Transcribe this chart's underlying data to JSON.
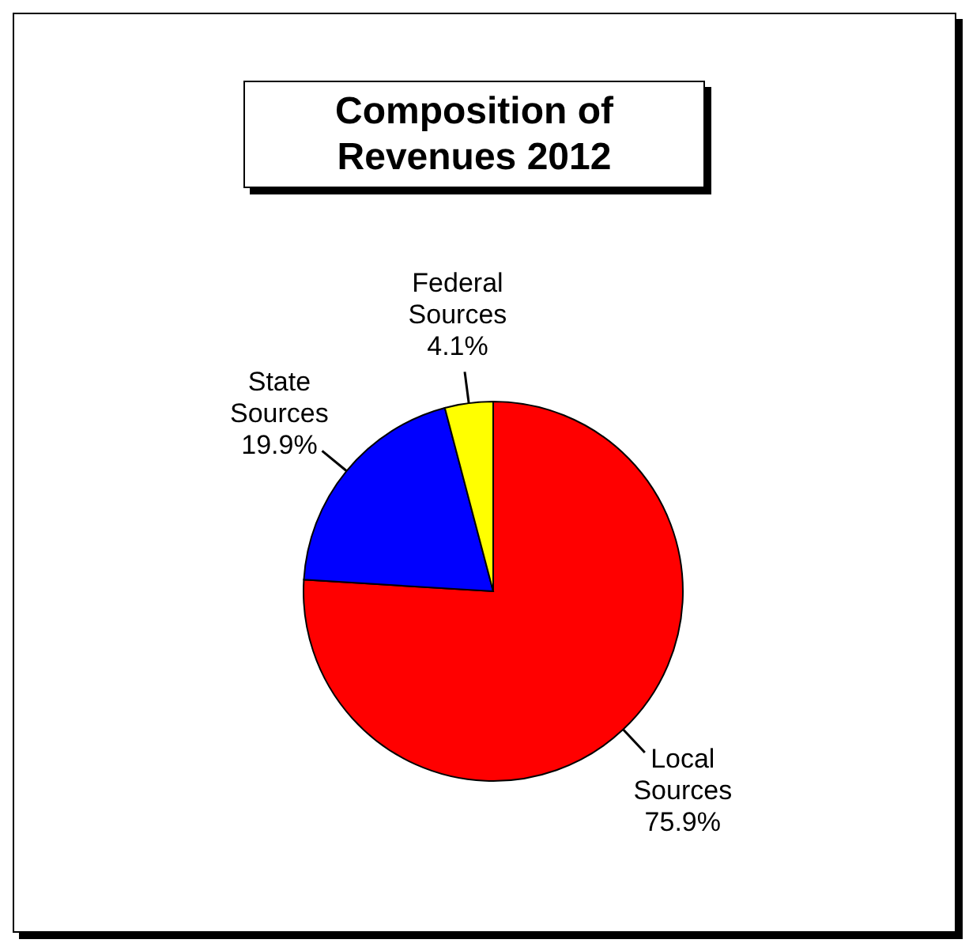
{
  "chart_data": {
    "type": "pie",
    "title": "Composition of Revenues 2012",
    "categories": [
      "Local Sources",
      "State Sources",
      "Federal Sources"
    ],
    "values": [
      75.9,
      19.9,
      4.1
    ],
    "value_labels": [
      "75.9%",
      "19.9%",
      "4.1%"
    ],
    "colors": [
      "#ff0000",
      "#0000ff",
      "#ffff00"
    ],
    "legend": false
  }
}
